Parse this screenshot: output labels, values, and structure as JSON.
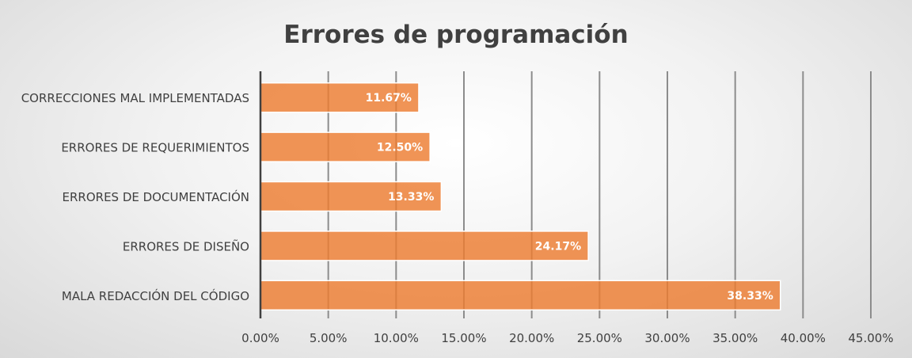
{
  "chart_data": {
    "type": "bar",
    "orientation": "horizontal",
    "title": "Errores de programación",
    "categories": [
      "CORRECCIONES MAL IMPLEMENTADAS",
      "ERRORES DE REQUERIMIENTOS",
      "ERRORES DE DOCUMENTACIÓN",
      "ERRORES DE DISEÑO",
      "MALA REDACCIÓN DEL CÓDIGO"
    ],
    "values": [
      11.67,
      12.5,
      13.33,
      24.17,
      38.33
    ],
    "data_labels": [
      "11.67%",
      "12.50%",
      "13.33%",
      "24.17%",
      "38.33%"
    ],
    "xlim": [
      0,
      45
    ],
    "xticks": [
      0,
      5,
      10,
      15,
      20,
      25,
      30,
      35,
      40,
      45
    ],
    "xtick_labels": [
      "0.00%",
      "5.00%",
      "10.00%",
      "15.00%",
      "20.00%",
      "25.00%",
      "30.00%",
      "35.00%",
      "40.00%",
      "45.00%"
    ],
    "xlabel": "",
    "ylabel": "",
    "grid": true,
    "legend": "none",
    "bar_color": "#ED7D31"
  }
}
